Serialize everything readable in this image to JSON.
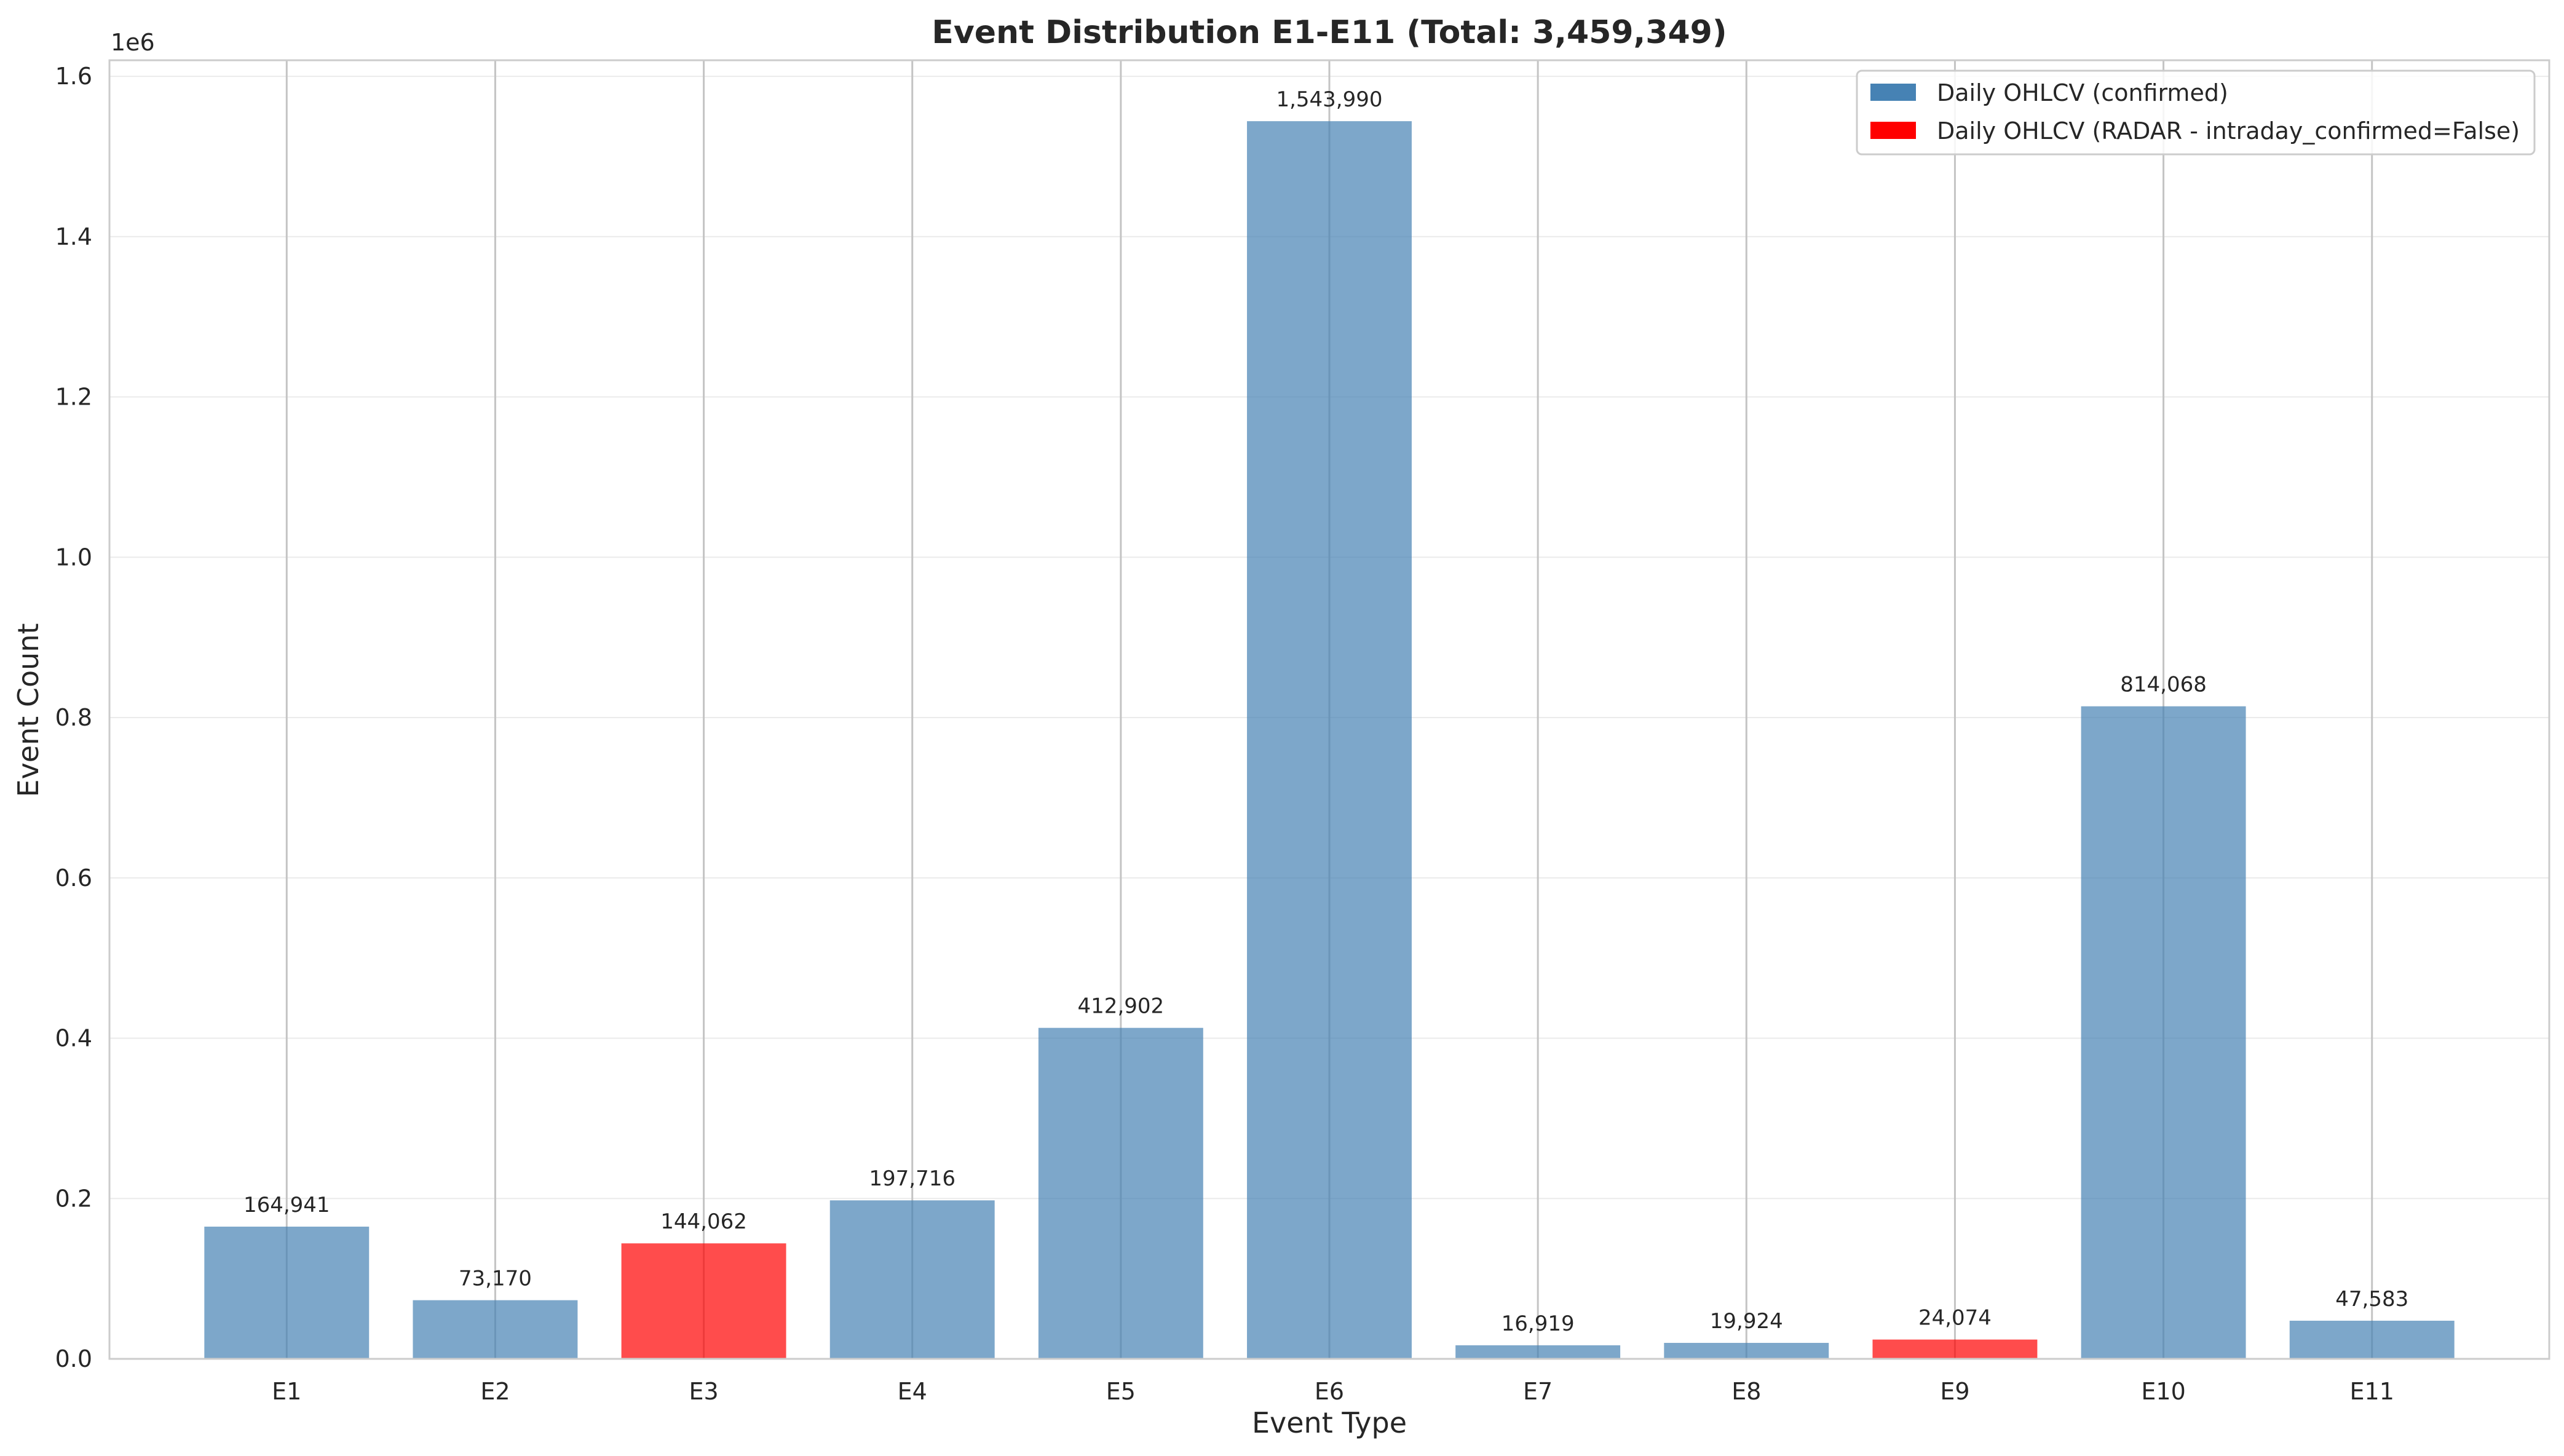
{
  "chart_data": {
    "type": "bar",
    "title": "Event Distribution E1-E11 (Total: 3,459,349)",
    "xlabel": "Event Type",
    "ylabel": "Event Count",
    "y_offset_label": "1e6",
    "ylim": [
      0,
      1620000
    ],
    "y_ticks": [
      0,
      200000,
      400000,
      600000,
      800000,
      1000000,
      1200000,
      1400000,
      1600000
    ],
    "y_tick_labels": [
      "0.0",
      "0.2",
      "0.4",
      "0.6",
      "0.8",
      "1.0",
      "1.2",
      "1.4",
      "1.6"
    ],
    "categories": [
      "E1",
      "E2",
      "E3",
      "E4",
      "E5",
      "E6",
      "E7",
      "E8",
      "E9",
      "E10",
      "E11"
    ],
    "values": [
      164941,
      73170,
      144062,
      197716,
      412902,
      1543990,
      16919,
      19924,
      24074,
      814068,
      47583
    ],
    "value_labels": [
      "164,941",
      "73,170",
      "144,062",
      "197,716",
      "412,902",
      "1,543,990",
      "16,919",
      "19,924",
      "24,074",
      "814,068",
      "47,583"
    ],
    "bar_series": [
      "confirmed",
      "confirmed",
      "radar",
      "confirmed",
      "confirmed",
      "confirmed",
      "confirmed",
      "confirmed",
      "radar",
      "confirmed",
      "confirmed"
    ],
    "series": [
      {
        "key": "confirmed",
        "name": "Daily OHLCV (confirmed)",
        "color": "#4682b4"
      },
      {
        "key": "radar",
        "name": "Daily OHLCV (RADAR - intraday_confirmed=False)",
        "color": "#ff0000"
      }
    ],
    "grid": true,
    "legend_position": "top-right"
  }
}
